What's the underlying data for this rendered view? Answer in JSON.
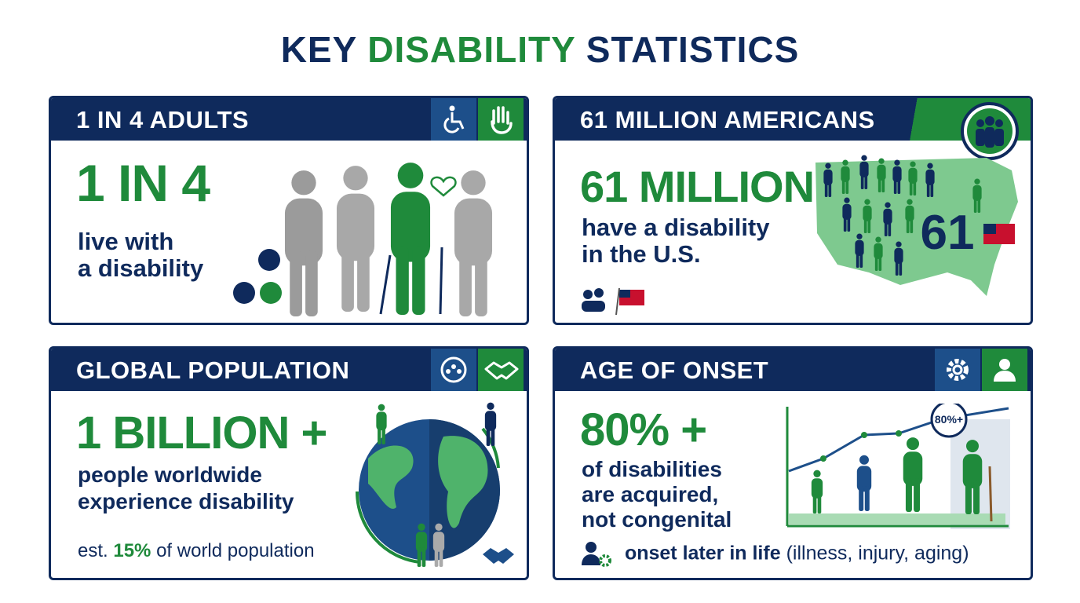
{
  "title": {
    "parts": [
      "KEY",
      "DISABILITY",
      "STATISTICS"
    ]
  },
  "cards": [
    {
      "header": "1 IN 4 ADULTS",
      "stat": "1 IN 4",
      "lines": [
        "live with",
        "a disability"
      ]
    },
    {
      "header": "61 MILLION AMERICANS",
      "stat": "61 MILLION",
      "lines": [
        "have a disability",
        "in the U.S."
      ],
      "map_label": "61"
    },
    {
      "header": "GLOBAL POPULATION",
      "stat": "1 BILLION +",
      "lines": [
        "people worldwide",
        "experience disability"
      ],
      "note": [
        "est.",
        "15%",
        "of world population"
      ]
    },
    {
      "header": "AGE OF ONSET",
      "stat": "80% +",
      "lines": [
        "of disabilities",
        "are acquired,",
        "not congenital"
      ],
      "badge": "80%+",
      "footer": [
        "onset later in life",
        "(illness, injury, aging)"
      ]
    }
  ]
}
